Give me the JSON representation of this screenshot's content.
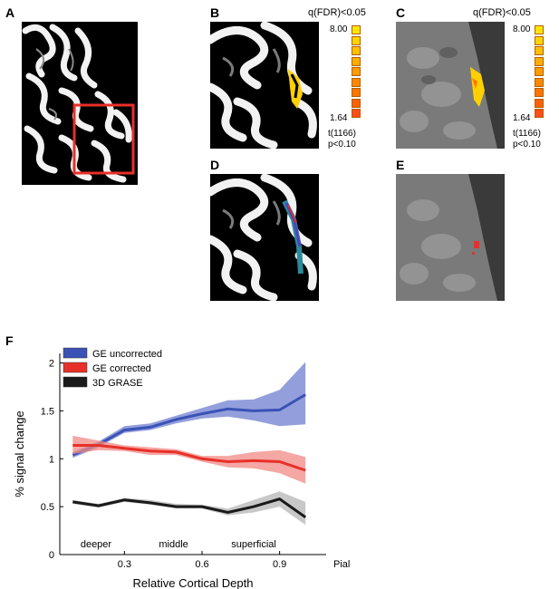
{
  "panels": {
    "a": "A",
    "b": "B",
    "c": "C",
    "d": "D",
    "e": "E",
    "f": "F"
  },
  "colorbar": {
    "title": "q(FDR)<0.05",
    "max_label": "8.00",
    "min_label": "1.64",
    "stat_label": "t(1166)",
    "p_label": "p<0.10",
    "colors": [
      "#ffe600",
      "#ffd400",
      "#ffc000",
      "#ffad00",
      "#ff9a00",
      "#ff8700",
      "#ff7400",
      "#ff6000",
      "#ff4d1a"
    ]
  },
  "chart_data": {
    "type": "line",
    "xlabel": "Relative Cortical Depth",
    "ylabel": "% signal change",
    "xlim": [
      0.05,
      1.08
    ],
    "ylim": [
      0,
      2.1
    ],
    "xticks": [
      0.3,
      0.6,
      0.9
    ],
    "xtick_labels": [
      "0.3",
      "0.6",
      "0.9"
    ],
    "extra_xtick_label": "Pial",
    "yticks": [
      0,
      0.5,
      1,
      1.5,
      2
    ],
    "ytick_labels": [
      "0",
      "0.5",
      "1",
      "1.5",
      "2"
    ],
    "region_labels": [
      {
        "text": "deeper",
        "x": 0.19
      },
      {
        "text": "middle",
        "x": 0.49
      },
      {
        "text": "superficial",
        "x": 0.8
      }
    ],
    "legend_position": "top-left",
    "x": [
      0.1,
      0.2,
      0.3,
      0.4,
      0.5,
      0.6,
      0.7,
      0.8,
      0.9,
      1.0
    ],
    "series": [
      {
        "name": "GE uncorrected",
        "color": "#3a52b5",
        "band_color": "#6f7fd0",
        "values": [
          1.04,
          1.15,
          1.3,
          1.33,
          1.41,
          1.47,
          1.52,
          1.5,
          1.51,
          1.67
        ],
        "lower": [
          1.01,
          1.12,
          1.27,
          1.3,
          1.37,
          1.42,
          1.44,
          1.4,
          1.34,
          1.36
        ],
        "upper": [
          1.07,
          1.18,
          1.34,
          1.37,
          1.45,
          1.53,
          1.61,
          1.62,
          1.72,
          2.01
        ]
      },
      {
        "name": "GE corrected",
        "color": "#e8302a",
        "band_color": "#f08a84",
        "values": [
          1.14,
          1.14,
          1.11,
          1.08,
          1.07,
          1.0,
          0.97,
          0.98,
          0.97,
          0.88
        ],
        "lower": [
          1.05,
          1.09,
          1.08,
          1.04,
          1.04,
          0.97,
          0.91,
          0.9,
          0.85,
          0.74
        ],
        "upper": [
          1.24,
          1.19,
          1.14,
          1.12,
          1.1,
          1.03,
          1.03,
          1.07,
          1.09,
          1.02
        ]
      },
      {
        "name": "3D GRASE",
        "color": "#1a1a1a",
        "band_color": "#b5b5b5",
        "values": [
          0.55,
          0.51,
          0.57,
          0.54,
          0.5,
          0.5,
          0.44,
          0.5,
          0.58,
          0.39
        ],
        "lower": [
          0.53,
          0.49,
          0.55,
          0.52,
          0.48,
          0.48,
          0.41,
          0.44,
          0.5,
          0.31
        ],
        "upper": [
          0.57,
          0.53,
          0.59,
          0.57,
          0.53,
          0.52,
          0.48,
          0.57,
          0.66,
          0.55
        ]
      }
    ]
  }
}
